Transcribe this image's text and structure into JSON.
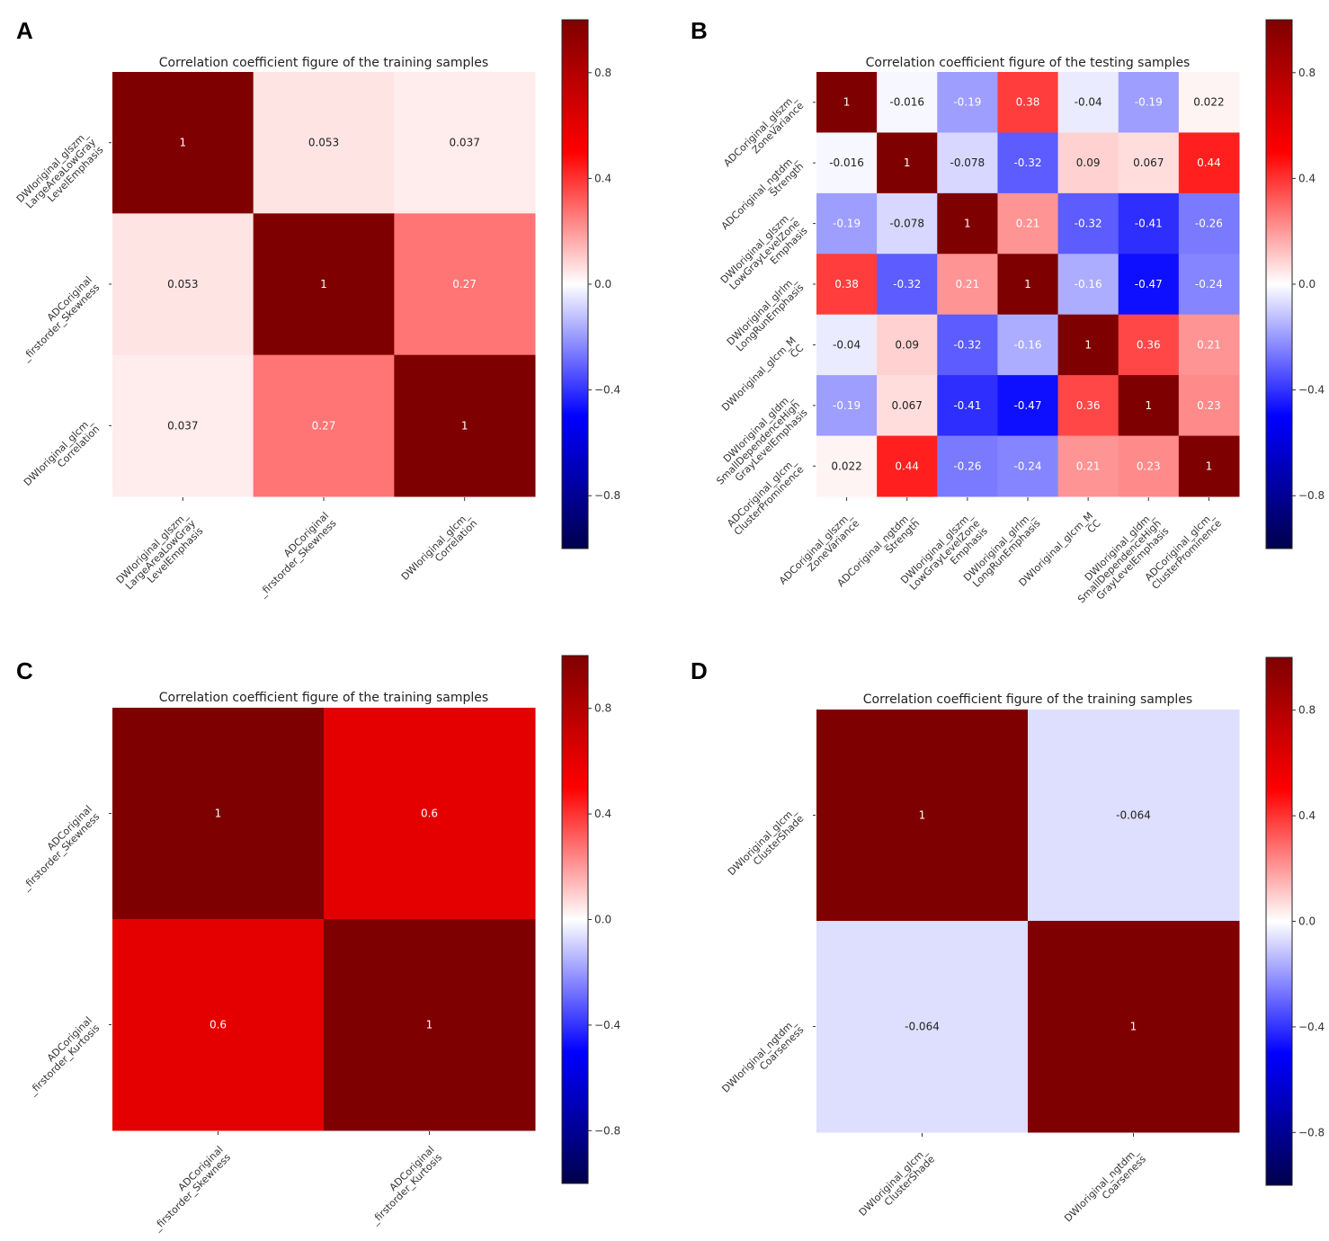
{
  "chart_data": [
    {
      "panel_label": "A",
      "type": "heatmap",
      "title": "Correlation coefficient figure of the training samples",
      "labels": [
        "DWIoriginal_glszm_\nLargeAreaLowGray\nLevelEmphasis",
        "ADCoriginal\n_firstorder_Skewness",
        "DWIoriginal_glcm_\nCorrelation"
      ],
      "matrix": [
        [
          1,
          0.053,
          0.037
        ],
        [
          0.053,
          1,
          0.27
        ],
        [
          0.037,
          0.27,
          1
        ]
      ],
      "display": [
        [
          "1",
          "0.053",
          "0.037"
        ],
        [
          "0.053",
          "1",
          "0.27"
        ],
        [
          "0.037",
          "0.27",
          "1"
        ]
      ],
      "colorbar": {
        "colormap": "seismic",
        "range": [
          -1,
          1
        ],
        "ticks": [
          0.8,
          0.4,
          0.0,
          -0.4,
          -0.8
        ],
        "tick_labels": [
          "0.8",
          "0.4",
          "0.0",
          "−0.4",
          "−0.8"
        ]
      }
    },
    {
      "panel_label": "B",
      "type": "heatmap",
      "title": "Correlation coefficient figure of the testing samples",
      "labels": [
        "ADCoriginal_glszm_\nZoneVariance",
        "ADCoriginal_ngtdm_\nStrength",
        "DWIoriginal_glszm_\nLowGrayLevelZone\nEmphasis",
        "DWIoriginal_glrlm_\nLongRunEmphasis",
        "DWIoriginal_glcm_M\nCC",
        "DWIoriginal_gldm_\nSmallDependenceHigh\nGrayLevelEmphasis",
        "ADCoriginal_glcm_\nClusterProminence"
      ],
      "matrix": [
        [
          1,
          -0.016,
          -0.19,
          0.38,
          -0.04,
          -0.19,
          0.022
        ],
        [
          -0.016,
          1,
          -0.078,
          -0.32,
          0.09,
          0.067,
          0.44
        ],
        [
          -0.19,
          -0.078,
          1,
          0.21,
          -0.32,
          -0.41,
          -0.26
        ],
        [
          0.38,
          -0.32,
          0.21,
          1,
          -0.16,
          -0.47,
          -0.24
        ],
        [
          -0.04,
          0.09,
          -0.32,
          -0.16,
          1,
          0.36,
          0.21
        ],
        [
          -0.19,
          0.067,
          -0.41,
          -0.47,
          0.36,
          1,
          0.23
        ],
        [
          0.022,
          0.44,
          -0.26,
          -0.24,
          0.21,
          0.23,
          1
        ]
      ],
      "display": [
        [
          "1",
          "-0.016",
          "-0.19",
          "0.38",
          "-0.04",
          "-0.19",
          "0.022"
        ],
        [
          "-0.016",
          "1",
          "-0.078",
          "-0.32",
          "0.09",
          "0.067",
          "0.44"
        ],
        [
          "-0.19",
          "-0.078",
          "1",
          "0.21",
          "-0.32",
          "-0.41",
          "-0.26"
        ],
        [
          "0.38",
          "-0.32",
          "0.21",
          "1",
          "-0.16",
          "-0.47",
          "-0.24"
        ],
        [
          "-0.04",
          "0.09",
          "-0.32",
          "-0.16",
          "1",
          "0.36",
          "0.21"
        ],
        [
          "-0.19",
          "0.067",
          "-0.41",
          "-0.47",
          "0.36",
          "1",
          "0.23"
        ],
        [
          "0.022",
          "0.44",
          "-0.26",
          "-0.24",
          "0.21",
          "0.23",
          "1"
        ]
      ],
      "colorbar": {
        "colormap": "seismic",
        "range": [
          -1,
          1
        ],
        "ticks": [
          0.8,
          0.4,
          0.0,
          -0.4,
          -0.8
        ],
        "tick_labels": [
          "0.8",
          "0.4",
          "0.0",
          "−0.4",
          "−0.8"
        ]
      }
    },
    {
      "panel_label": "C",
      "type": "heatmap",
      "title": "Correlation coefficient figure of the training samples",
      "labels": [
        "ADCoriginal\n_firstorder_Skewness",
        "ADCoriginal\n_firstorder_Kurtosis"
      ],
      "matrix": [
        [
          1,
          0.6
        ],
        [
          0.6,
          1
        ]
      ],
      "display": [
        [
          "1",
          "0.6"
        ],
        [
          "0.6",
          "1"
        ]
      ],
      "colorbar": {
        "colormap": "seismic",
        "range": [
          -1,
          1
        ],
        "ticks": [
          0.8,
          0.4,
          0.0,
          -0.4,
          -0.8
        ],
        "tick_labels": [
          "0.8",
          "0.4",
          "0.0",
          "−0.4",
          "−0.8"
        ]
      }
    },
    {
      "panel_label": "D",
      "type": "heatmap",
      "title": "Correlation coefficient figure of the training samples",
      "labels": [
        "DWIoriginal_glcm_\nClusterShade",
        "DWIoriginal_ngtdm_\nCoarseness"
      ],
      "matrix": [
        [
          1,
          -0.064
        ],
        [
          -0.064,
          1
        ]
      ],
      "display": [
        [
          "1",
          "-0.064"
        ],
        [
          "-0.064",
          "1"
        ]
      ],
      "colorbar": {
        "colormap": "seismic",
        "range": [
          -1,
          1
        ],
        "ticks": [
          0.8,
          0.4,
          0.0,
          -0.4,
          -0.8
        ],
        "tick_labels": [
          "0.8",
          "0.4",
          "0.0",
          "−0.4",
          "−0.8"
        ]
      }
    }
  ]
}
